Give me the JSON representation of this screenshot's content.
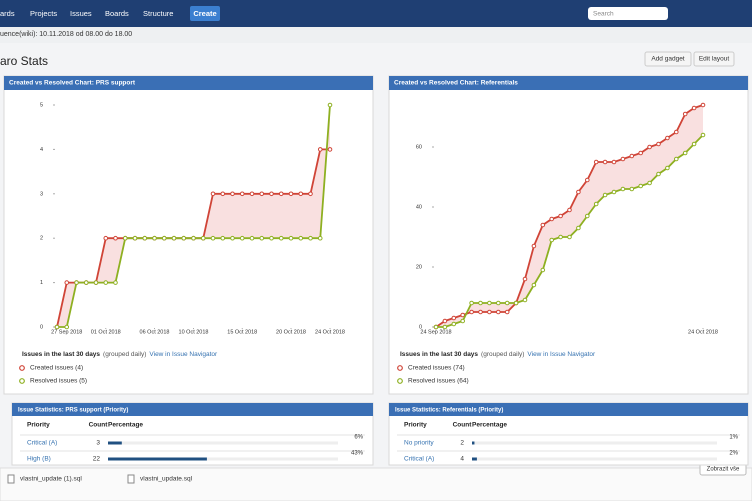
{
  "nav": {
    "items": [
      "ards",
      "Projects",
      "Issues",
      "Boards",
      "Structure"
    ],
    "create": "Create",
    "search": "Search"
  },
  "subheader": "uence(wiki): 10.11.2018 od 08.00 do 18.00",
  "page": {
    "title": "aro Stats",
    "buttons": [
      "Add gadget",
      "Edit layout"
    ]
  },
  "chart_data": [
    {
      "type": "line",
      "title": "Created vs Resolved Chart: PRS support",
      "x": [
        "26 Sep 2018",
        "27 Sep 2018",
        "28 Sep 2018",
        "29 Sep 2018",
        "30 Sep 2018",
        "01 Oct 2018",
        "02 Oct 2018",
        "03 Oct 2018",
        "04 Oct 2018",
        "05 Oct 2018",
        "06 Oct 2018",
        "07 Oct 2018",
        "08 Oct 2018",
        "09 Oct 2018",
        "10 Oct 2018",
        "11 Oct 2018",
        "12 Oct 2018",
        "13 Oct 2018",
        "14 Oct 2018",
        "15 Oct 2018",
        "16 Oct 2018",
        "17 Oct 2018",
        "18 Oct 2018",
        "19 Oct 2018",
        "20 Oct 2018",
        "21 Oct 2018",
        "22 Oct 2018",
        "23 Oct 2018",
        "24 Oct 2018"
      ],
      "xlim": [
        "26 Sep 2018",
        "24 Oct 2018"
      ],
      "xticks": [
        "27 Sep 2018",
        "01 Oct 2018",
        "06 Oct 2018",
        "10 Oct 2018",
        "15 Oct 2018",
        "20 Oct 2018",
        "24 Oct 2018"
      ],
      "ylim": [
        0,
        5
      ],
      "yticks": [
        0,
        1,
        2,
        3,
        4,
        5
      ],
      "grid": false,
      "series": [
        {
          "name": "Created issues (4)",
          "color": "#d04437",
          "values": [
            0,
            1,
            1,
            1,
            1,
            2,
            2,
            2,
            2,
            2,
            2,
            2,
            2,
            2,
            2,
            2,
            3,
            3,
            3,
            3,
            3,
            3,
            3,
            3,
            3,
            3,
            3,
            4,
            4
          ]
        },
        {
          "name": "Resolved issues (5)",
          "color": "#8eb021",
          "values": [
            0,
            0,
            1,
            1,
            1,
            1,
            1,
            2,
            2,
            2,
            2,
            2,
            2,
            2,
            2,
            2,
            2,
            2,
            2,
            2,
            2,
            2,
            2,
            2,
            2,
            2,
            2,
            2,
            5
          ]
        }
      ],
      "caption": "Issues in the last 30 days",
      "caption_note": "(grouped daily)",
      "link": "View in Issue Navigator"
    },
    {
      "type": "line",
      "title": "Created vs Resolved Chart: Referentials",
      "x": [
        "24 Sep 2018",
        "25 Sep 2018",
        "26 Sep 2018",
        "27 Sep 2018",
        "28 Sep 2018",
        "29 Sep 2018",
        "30 Sep 2018",
        "01 Oct 2018",
        "02 Oct 2018",
        "03 Oct 2018",
        "04 Oct 2018",
        "05 Oct 2018",
        "06 Oct 2018",
        "07 Oct 2018",
        "08 Oct 2018",
        "09 Oct 2018",
        "10 Oct 2018",
        "11 Oct 2018",
        "12 Oct 2018",
        "13 Oct 2018",
        "14 Oct 2018",
        "15 Oct 2018",
        "16 Oct 2018",
        "17 Oct 2018",
        "18 Oct 2018",
        "19 Oct 2018",
        "20 Oct 2018",
        "21 Oct 2018",
        "22 Oct 2018",
        "23 Oct 2018",
        "24 Oct 2018"
      ],
      "xlim": [
        "24 Sep 2018",
        "24 Oct 2018"
      ],
      "xticks": [
        "24 Sep 2018",
        "24 Oct 2018"
      ],
      "ylim": [
        0,
        75
      ],
      "yticks": [
        0,
        20,
        40,
        60
      ],
      "grid": false,
      "series": [
        {
          "name": "Created issues (74)",
          "color": "#d04437",
          "values": [
            0,
            2,
            3,
            4,
            5,
            5,
            5,
            5,
            5,
            8,
            16,
            27,
            34,
            36,
            37,
            39,
            45,
            49,
            55,
            55,
            55,
            56,
            57,
            58,
            60,
            61,
            63,
            65,
            71,
            73,
            74
          ]
        },
        {
          "name": "Resolved issues (64)",
          "color": "#8eb021",
          "values": [
            0,
            0,
            1,
            2,
            8,
            8,
            8,
            8,
            8,
            8,
            9,
            14,
            19,
            29,
            30,
            30,
            33,
            37,
            41,
            44,
            45,
            46,
            46,
            47,
            48,
            51,
            53,
            56,
            58,
            61,
            64
          ]
        }
      ],
      "caption": "Issues in the last 30 days",
      "caption_note": "(grouped daily)",
      "link": "View in Issue Navigator"
    }
  ],
  "tables": [
    {
      "title": "Issue Statistics: PRS support (Priority)",
      "headers": [
        "Priority",
        "Count",
        "Percentage"
      ],
      "rows": [
        {
          "priority": "Critical (A)",
          "count": "3",
          "percentage": 6,
          "percentage_label": "6%"
        },
        {
          "priority": "High (B)",
          "count": "22",
          "percentage": 43,
          "percentage_label": "43%"
        }
      ]
    },
    {
      "title": "Issue Statistics: Referentials (Priority)",
      "headers": [
        "Priority",
        "Count",
        "Percentage"
      ],
      "rows": [
        {
          "priority": "No priority",
          "count": "2",
          "percentage": 1,
          "percentage_label": "1%"
        },
        {
          "priority": "Critical (A)",
          "count": "4",
          "percentage": 2,
          "percentage_label": "2%"
        }
      ]
    }
  ],
  "downloads": [
    "vlastni_update (1).sql",
    "vlastni_update.sql"
  ],
  "show_all": "Zobrazit vše"
}
